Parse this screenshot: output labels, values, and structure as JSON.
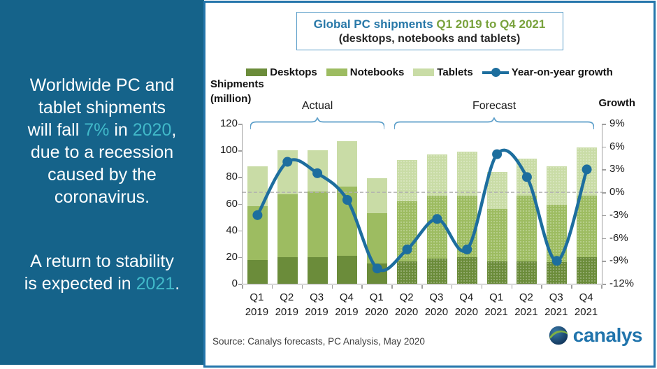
{
  "palette": {
    "sidebar_bg": "#15638a",
    "accent_cyan": "#41b9c9",
    "panel_border": "#2576ab",
    "box_border": "#5b9ec9",
    "title_blue": "#2878a8",
    "title_green": "#79a23c",
    "desktops": "#6b8c3a",
    "notebooks": "#9dbc61",
    "tablets": "#c9dca6",
    "line": "#1d6e9e",
    "axis": "#a0a0a0",
    "zero_line": "#b0b0b0"
  },
  "sidebar": {
    "message1_lines": [
      [
        {
          "t": "Worldwide PC and"
        }
      ],
      [
        {
          "t": "tablet shipments"
        }
      ],
      [
        {
          "t": "will fall "
        },
        {
          "t": "7%",
          "hl": true
        },
        {
          "t": " in "
        },
        {
          "t": "2020",
          "hl": true
        },
        {
          "t": ","
        }
      ],
      [
        {
          "t": "due to a recession"
        }
      ],
      [
        {
          "t": "caused by the"
        }
      ],
      [
        {
          "t": "coronavirus."
        }
      ]
    ],
    "message2_lines": [
      [
        {
          "t": "A return to stability"
        }
      ],
      [
        {
          "t": "is expected in "
        },
        {
          "t": "2021",
          "hl": true
        },
        {
          "t": "."
        }
      ]
    ]
  },
  "chart_data": {
    "type": "bar",
    "stacked": true,
    "title_segments": [
      {
        "t": "Global PC shipments ",
        "color_key": "title_blue"
      },
      {
        "t": "Q1 2019 to Q4 2021",
        "color_key": "title_green"
      }
    ],
    "subtitle": "(desktops, notebooks and tablets)",
    "categories": [
      "Q1 2019",
      "Q2 2019",
      "Q3 2019",
      "Q4 2019",
      "Q1 2020",
      "Q2 2020",
      "Q3 2020",
      "Q4 2020",
      "Q1 2021",
      "Q2 2021",
      "Q3 2021",
      "Q4 2021"
    ],
    "series": [
      {
        "name": "Desktops",
        "color_key": "desktops",
        "values": [
          18,
          20,
          20,
          21,
          15,
          17,
          19,
          20,
          17,
          17,
          16,
          20
        ]
      },
      {
        "name": "Notebooks",
        "color_key": "notebooks",
        "values": [
          40,
          47,
          49,
          52,
          38,
          45,
          47,
          46,
          39,
          49,
          43,
          46
        ]
      },
      {
        "name": "Tablets",
        "color_key": "tablets",
        "values": [
          30,
          33,
          31,
          34,
          26,
          31,
          31,
          33,
          28,
          28,
          29,
          36
        ]
      }
    ],
    "totals": [
      88,
      100,
      100,
      107,
      79,
      93,
      97,
      99,
      84,
      94,
      88,
      102
    ],
    "line_series": {
      "name": "Year-on-year growth",
      "axis": "right",
      "unit": "%",
      "values": [
        -3,
        4,
        2.5,
        -1,
        -10,
        -7.5,
        -3.5,
        -7.5,
        5,
        2,
        -9,
        3
      ]
    },
    "forecast_start_index": 5,
    "left_axis": {
      "title_line1": "Shipments",
      "title_line2": "(million)",
      "ticks": [
        120,
        100,
        80,
        60,
        40,
        20,
        0
      ],
      "min": 0,
      "max": 120
    },
    "right_axis": {
      "title": "Growth",
      "ticks": [
        "9%",
        "6%",
        "3%",
        "0%",
        "-3%",
        "-6%",
        "-9%",
        "-12%"
      ],
      "min": -12,
      "max": 9,
      "zero_line": 0
    },
    "annotations": [
      {
        "label": "Actual",
        "from": 0,
        "to": 4
      },
      {
        "label": "Forecast",
        "from": 5,
        "to": 11
      }
    ],
    "legend": [
      {
        "label": "Desktops",
        "swatch": "desktops"
      },
      {
        "label": "Notebooks",
        "swatch": "notebooks"
      },
      {
        "label": "Tablets",
        "swatch": "tablets"
      },
      {
        "label": "Year-on-year growth",
        "swatch": "line"
      }
    ],
    "grid": false,
    "legend_position": "top"
  },
  "footer": {
    "source": "Source:  Canalys forecasts, PC Analysis, May 2020",
    "logo_text": "canalys"
  }
}
